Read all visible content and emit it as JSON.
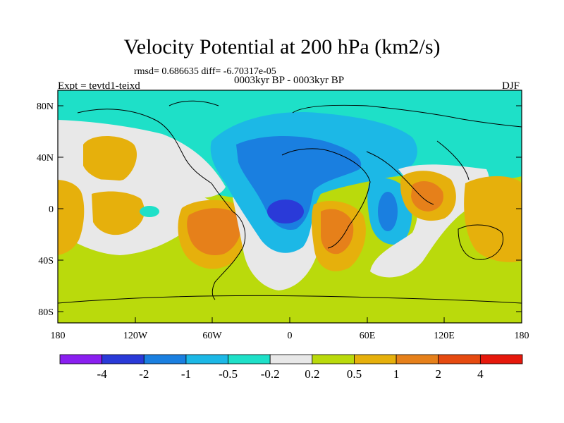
{
  "header": {
    "title": "Velocity Potential at 200 hPa (km2/s)",
    "stats": "rmsd= 0.686635 diff= -6.70317e-05",
    "subtitle": "0003kyr BP - 0003kyr BP",
    "experiment": "Expt = tevtd1-teixd",
    "season": "DJF"
  },
  "map": {
    "lat_labels": [
      "80N",
      "40N",
      "0",
      "40S",
      "80S"
    ],
    "lon_labels": [
      "180",
      "120W",
      "60W",
      "0",
      "60E",
      "120E",
      "180"
    ]
  },
  "colorbar": {
    "colors": [
      "#8a1ff0",
      "#2a3ad8",
      "#1a7fe0",
      "#1cb8e6",
      "#1ee0c8",
      "#e8e8e8",
      "#bada0c",
      "#e6b00c",
      "#e6801a",
      "#e64a10",
      "#e6180c"
    ],
    "labels": [
      "-4",
      "-2",
      "-1",
      "-0.5",
      "-0.2",
      "0.2",
      "0.5",
      "1",
      "2",
      "4"
    ]
  }
}
